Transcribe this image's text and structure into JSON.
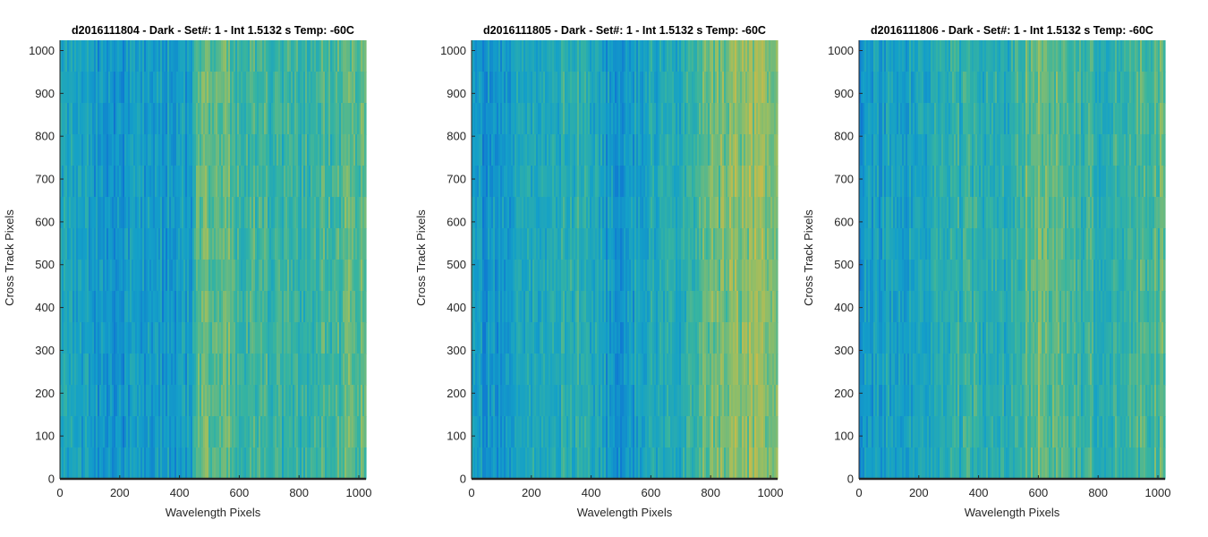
{
  "chart_data": [
    {
      "type": "heatmap",
      "title": "d2016111804 - Dark - Set#: 1 - Int 1.5132 s Temp: -60C",
      "xlabel": "Wavelength Pixels",
      "ylabel": "Cross Track Pixels",
      "xlim": [
        0,
        1024
      ],
      "ylim": [
        0,
        1024
      ],
      "xticks": [
        0,
        200,
        400,
        600,
        800,
        1000
      ],
      "yticks": [
        0,
        100,
        200,
        300,
        400,
        500,
        600,
        700,
        800,
        900,
        1000
      ],
      "colormap": "parula",
      "column_profile": {
        "x": [
          0,
          50,
          100,
          150,
          200,
          250,
          300,
          350,
          400,
          440,
          450,
          480,
          520,
          560,
          600,
          650,
          700,
          750,
          800,
          850,
          900,
          950,
          1000,
          1024
        ],
        "level": [
          0.4,
          0.38,
          0.34,
          0.3,
          0.3,
          0.31,
          0.33,
          0.33,
          0.34,
          0.36,
          0.5,
          0.58,
          0.58,
          0.55,
          0.52,
          0.5,
          0.48,
          0.48,
          0.48,
          0.5,
          0.5,
          0.52,
          0.55,
          0.55
        ]
      }
    },
    {
      "type": "heatmap",
      "title": "d2016111805 - Dark - Set#: 1 - Int 1.5132 s Temp: -60C",
      "xlabel": "Wavelength Pixels",
      "ylabel": "Cross Track Pixels",
      "xlim": [
        0,
        1024
      ],
      "ylim": [
        0,
        1024
      ],
      "xticks": [
        0,
        200,
        400,
        600,
        800,
        1000
      ],
      "yticks": [
        0,
        100,
        200,
        300,
        400,
        500,
        600,
        700,
        800,
        900,
        1000
      ],
      "colormap": "parula",
      "column_profile": {
        "x": [
          0,
          50,
          100,
          150,
          200,
          250,
          300,
          350,
          400,
          450,
          500,
          550,
          600,
          650,
          700,
          740,
          760,
          800,
          850,
          900,
          950,
          1000,
          1024
        ],
        "level": [
          0.32,
          0.3,
          0.32,
          0.36,
          0.38,
          0.42,
          0.44,
          0.44,
          0.4,
          0.34,
          0.32,
          0.36,
          0.4,
          0.42,
          0.44,
          0.46,
          0.55,
          0.58,
          0.6,
          0.62,
          0.64,
          0.66,
          0.66
        ]
      }
    },
    {
      "type": "heatmap",
      "title": "d2016111806 - Dark - Set#: 1 - Int 1.5132 s Temp: -60C",
      "xlabel": "Wavelength Pixels",
      "ylabel": "Cross Track Pixels",
      "xlim": [
        0,
        1024
      ],
      "ylim": [
        0,
        1024
      ],
      "xticks": [
        0,
        200,
        400,
        600,
        800,
        1000
      ],
      "yticks": [
        0,
        100,
        200,
        300,
        400,
        500,
        600,
        700,
        800,
        900,
        1000
      ],
      "colormap": "parula",
      "column_profile": {
        "x": [
          0,
          30,
          80,
          150,
          200,
          250,
          300,
          350,
          400,
          450,
          500,
          540,
          560,
          600,
          650,
          700,
          750,
          800,
          850,
          900,
          950,
          1000,
          1024
        ],
        "level": [
          0.3,
          0.34,
          0.36,
          0.38,
          0.4,
          0.42,
          0.44,
          0.46,
          0.46,
          0.44,
          0.44,
          0.46,
          0.56,
          0.6,
          0.56,
          0.52,
          0.48,
          0.46,
          0.48,
          0.5,
          0.52,
          0.54,
          0.56
        ]
      }
    }
  ]
}
